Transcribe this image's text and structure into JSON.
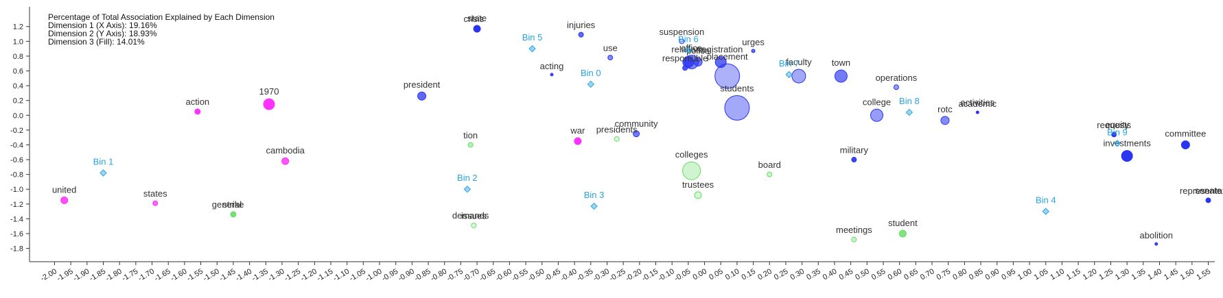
{
  "chart_data": {
    "type": "scatter",
    "title": "",
    "info_lines": [
      "Percentage of Total Association Explained by Each Dimension",
      "Dimension 1 (X Axis): 19.16%",
      "Dimension 2 (Y Axis): 18.93%",
      "Dimension 3 (Fill): 14.01%"
    ],
    "xlim": [
      -2.02,
      1.57
    ],
    "ylim": [
      -1.98,
      1.42
    ],
    "x_ticks": [
      -2.0,
      -1.95,
      -1.9,
      -1.85,
      -1.8,
      -1.75,
      -1.7,
      -1.65,
      -1.6,
      -1.55,
      -1.5,
      -1.45,
      -1.4,
      -1.35,
      -1.3,
      -1.25,
      -1.2,
      -1.15,
      -1.1,
      -1.05,
      -1.0,
      -0.95,
      -0.9,
      -0.85,
      -0.8,
      -0.75,
      -0.7,
      -0.65,
      -0.6,
      -0.55,
      -0.5,
      -0.45,
      -0.4,
      -0.35,
      -0.3,
      -0.25,
      -0.2,
      -0.15,
      -0.1,
      -0.05,
      0.0,
      0.05,
      0.1,
      0.15,
      0.2,
      0.25,
      0.3,
      0.35,
      0.4,
      0.45,
      0.5,
      0.55,
      0.6,
      0.65,
      0.7,
      0.75,
      0.8,
      0.85,
      0.9,
      0.95,
      1.0,
      1.05,
      1.1,
      1.15,
      1.2,
      1.25,
      1.3,
      1.35,
      1.4,
      1.45,
      1.5,
      1.55
    ],
    "x_tick_labels": [
      "-2.00",
      "-1.95",
      "-1.90",
      "-1.85",
      "-1.80",
      "-1.75",
      "-1.70",
      "-1.65",
      "-1.60",
      "-1.55",
      "-1.50",
      "-1.45",
      "-1.40",
      "-1.35",
      "-1.30",
      "-1.25",
      "-1.20",
      "-1.15",
      "-1.10",
      "-1.05",
      "-1.00",
      "-0.95",
      "-0.90",
      "-0.85",
      "-0.80",
      "-0.75",
      "-0.70",
      "-0.65",
      "-0.60",
      "-0.55",
      "-0.50",
      "-0.45",
      "-0.40",
      "-0.35",
      "-0.30",
      "-0.25",
      "-0.20",
      "-0.15",
      "-0.10",
      "-0.05",
      "0.00",
      "0.05",
      "0.10",
      "0.15",
      "0.20",
      "0.25",
      "0.30",
      "0.35",
      "0.40",
      "0.45",
      "0.50",
      "0.55",
      "0.60",
      "0.65",
      "0.70",
      "0.75",
      "0.80",
      "0.85",
      "0.90",
      "0.95",
      "1.00",
      "1.05",
      "1.10",
      "1.15",
      "1.20",
      "1.25",
      "1.30",
      "1.35",
      "1.40",
      "1.45",
      "1.50",
      "1.55"
    ],
    "y_ticks": [
      1.2,
      1.0,
      0.8,
      0.6,
      0.4,
      0.2,
      0.0,
      -0.2,
      -0.4,
      -0.6,
      -0.8,
      -1.0,
      -1.2,
      -1.4,
      -1.6,
      -1.8
    ],
    "y_tick_labels": [
      "1.2",
      "1.0",
      "0.8",
      "0.6",
      "0.4",
      "0.2",
      "0.0",
      "-0.2",
      "-0.4",
      "-0.6",
      "-0.8",
      "-1.0",
      "-1.2",
      "-1.4",
      "-1.6",
      "-1.8"
    ],
    "grid": false,
    "colors": {
      "magenta": "#ff33ff",
      "blue": "#2a35f0",
      "green": "#66dd66",
      "bin": "#29a3e0",
      "axis": "#333333",
      "label": "#333333"
    },
    "points": [
      {
        "label": "action",
        "x": -1.56,
        "y": 0.05,
        "size": 4,
        "color": "magenta",
        "fill": 1.0
      },
      {
        "label": "1970",
        "x": -1.34,
        "y": 0.15,
        "size": 8,
        "color": "magenta",
        "fill": 1.0
      },
      {
        "label": "cambodia",
        "x": -1.29,
        "y": -0.62,
        "size": 5,
        "color": "magenta",
        "fill": 0.8
      },
      {
        "label": "united",
        "x": -1.97,
        "y": -1.15,
        "size": 5,
        "color": "magenta",
        "fill": 0.85
      },
      {
        "label": "states",
        "x": -1.69,
        "y": -1.19,
        "size": 3.5,
        "color": "magenta",
        "fill": 0.7
      },
      {
        "label": "war",
        "x": -0.39,
        "y": -0.35,
        "size": 5,
        "color": "magenta",
        "fill": 1.0
      },
      {
        "label": "strike",
        "x": -1.45,
        "y": -1.34,
        "size": 4,
        "color": "green",
        "fill": 0.9
      },
      {
        "label": "general",
        "x": -1.47,
        "y": -1.34,
        "size": 0,
        "color": "green",
        "fill": 0.9
      },
      {
        "label": "tion",
        "x": -0.72,
        "y": -0.4,
        "size": 3.5,
        "color": "green",
        "fill": 0.4
      },
      {
        "label": "issues",
        "x": -0.71,
        "y": -1.49,
        "size": 3.5,
        "color": "green",
        "fill": 0.1
      },
      {
        "label": "demands",
        "x": -0.72,
        "y": -1.49,
        "size": 0,
        "color": "green",
        "fill": 0.1
      },
      {
        "label": "presidents",
        "x": -0.27,
        "y": -0.32,
        "size": 3.5,
        "color": "green",
        "fill": 0.1
      },
      {
        "label": "colleges",
        "x": -0.04,
        "y": -0.75,
        "size": 13,
        "color": "green",
        "fill": 0.35
      },
      {
        "label": "trustees",
        "x": -0.02,
        "y": -1.08,
        "size": 5,
        "color": "green",
        "fill": 0.15
      },
      {
        "label": "board",
        "x": 0.2,
        "y": -0.8,
        "size": 3.5,
        "color": "green",
        "fill": 0.25
      },
      {
        "label": "meetings",
        "x": 0.46,
        "y": -1.68,
        "size": 3.5,
        "color": "green",
        "fill": 0.25
      },
      {
        "label": "student",
        "x": 0.61,
        "y": -1.6,
        "size": 5,
        "color": "green",
        "fill": 0.8
      },
      {
        "label": "state",
        "x": -0.7,
        "y": 1.17,
        "size": 5,
        "color": "blue",
        "fill": 1.0
      },
      {
        "label": "crisis",
        "x": -0.71,
        "y": 1.17,
        "size": 0,
        "color": "blue",
        "fill": 1.0
      },
      {
        "label": "injuries",
        "x": -0.38,
        "y": 1.09,
        "size": 3.5,
        "color": "blue",
        "fill": 0.7
      },
      {
        "label": "use",
        "x": -0.29,
        "y": 0.78,
        "size": 3.5,
        "color": "blue",
        "fill": 0.5
      },
      {
        "label": "acting",
        "x": -0.47,
        "y": 0.55,
        "size": 2,
        "color": "blue",
        "fill": 0.9
      },
      {
        "label": "president",
        "x": -0.87,
        "y": 0.26,
        "size": 6,
        "color": "blue",
        "fill": 0.7
      },
      {
        "label": "community",
        "x": -0.21,
        "y": -0.25,
        "size": 4.5,
        "color": "blue",
        "fill": 0.6
      },
      {
        "label": "suspension",
        "x": -0.07,
        "y": 1.0,
        "size": 3.5,
        "color": "blue",
        "fill": 0.1
      },
      {
        "label": "responsible",
        "x": -0.06,
        "y": 0.64,
        "size": 3.5,
        "color": "blue",
        "fill": 0.8
      },
      {
        "label": "relations",
        "x": -0.05,
        "y": 0.72,
        "size": 8,
        "color": "blue",
        "fill": 0.8
      },
      {
        "label": "office",
        "x": -0.04,
        "y": 0.72,
        "size": 10,
        "color": "blue",
        "fill": 0.9
      },
      {
        "label": "police",
        "x": -0.02,
        "y": 0.72,
        "size": 6,
        "color": "blue",
        "fill": 0.6
      },
      {
        "label": "registration",
        "x": 0.05,
        "y": 0.72,
        "size": 8,
        "color": "blue",
        "fill": 0.7
      },
      {
        "label": "placement",
        "x": 0.07,
        "y": 0.53,
        "size": 18,
        "color": "blue",
        "fill": 0.5
      },
      {
        "label": "students",
        "x": 0.1,
        "y": 0.1,
        "size": 18,
        "color": "blue",
        "fill": 0.6
      },
      {
        "label": "urges",
        "x": 0.15,
        "y": 0.87,
        "size": 2.5,
        "color": "blue",
        "fill": 0.7
      },
      {
        "label": "faculty",
        "x": 0.29,
        "y": 0.53,
        "size": 10,
        "color": "blue",
        "fill": 0.6
      },
      {
        "label": "town",
        "x": 0.42,
        "y": 0.53,
        "size": 9,
        "color": "blue",
        "fill": 0.6
      },
      {
        "label": "operations",
        "x": 0.59,
        "y": 0.38,
        "size": 3.5,
        "color": "blue",
        "fill": 0.4
      },
      {
        "label": "college",
        "x": 0.53,
        "y": 0.0,
        "size": 9,
        "color": "blue",
        "fill": 0.4
      },
      {
        "label": "rotc",
        "x": 0.74,
        "y": -0.07,
        "size": 6,
        "color": "blue",
        "fill": 0.5
      },
      {
        "label": "academic",
        "x": 0.84,
        "y": 0.04,
        "size": 2,
        "color": "blue",
        "fill": 1.0
      },
      {
        "label": "activities",
        "x": 0.84,
        "y": 0.04,
        "size": 0,
        "color": "blue",
        "fill": 1.0
      },
      {
        "label": "military",
        "x": 0.46,
        "y": -0.6,
        "size": 3.5,
        "color": "blue",
        "fill": 0.9
      },
      {
        "label": "requests",
        "x": 1.26,
        "y": -0.26,
        "size": 3.5,
        "color": "blue",
        "fill": 1.0
      },
      {
        "label": "equity",
        "x": 1.27,
        "y": -0.26,
        "size": 0,
        "color": "blue",
        "fill": 1.0
      },
      {
        "label": "investments",
        "x": 1.3,
        "y": -0.55,
        "size": 8,
        "color": "blue",
        "fill": 1.0
      },
      {
        "label": "committee",
        "x": 1.48,
        "y": -0.4,
        "size": 6,
        "color": "blue",
        "fill": 1.0
      },
      {
        "label": "abolition",
        "x": 1.39,
        "y": -1.74,
        "size": 2,
        "color": "blue",
        "fill": 0.9
      },
      {
        "label": "representation",
        "x": 1.55,
        "y": -1.15,
        "size": 3.5,
        "color": "blue",
        "fill": 1.0
      },
      {
        "label": "senate",
        "x": 1.55,
        "y": -1.15,
        "size": 0,
        "color": "blue",
        "fill": 1.0
      }
    ],
    "bins": [
      {
        "label": "Bin 1",
        "x": -1.85,
        "y": -0.78
      },
      {
        "label": "Bin 2",
        "x": -0.73,
        "y": -1.0
      },
      {
        "label": "Bin 3",
        "x": -0.34,
        "y": -1.23
      },
      {
        "label": "Bin 0",
        "x": -0.35,
        "y": 0.42
      },
      {
        "label": "Bin 5",
        "x": -0.53,
        "y": 0.9
      },
      {
        "label": "Bin 6",
        "x": -0.05,
        "y": 0.88
      },
      {
        "label": "Bin 7",
        "x": 0.26,
        "y": 0.55
      },
      {
        "label": "Bin 8",
        "x": 0.63,
        "y": 0.04
      },
      {
        "label": "Bin 4",
        "x": 1.05,
        "y": -1.3
      },
      {
        "label": "Bin 9",
        "x": 1.27,
        "y": -0.38
      }
    ]
  }
}
